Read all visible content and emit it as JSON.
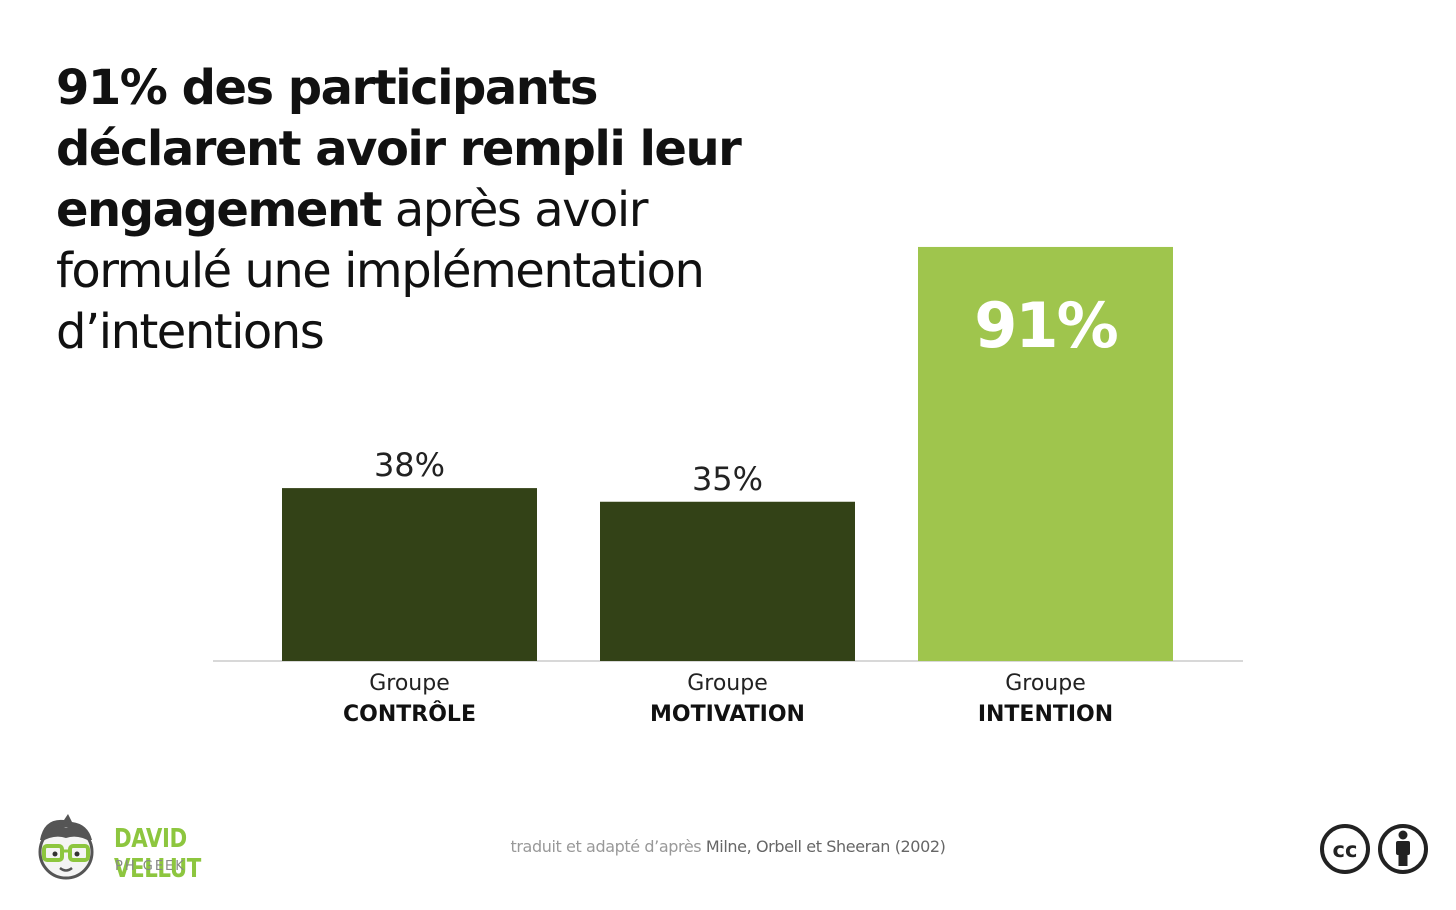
{
  "headline": {
    "bold_part": "91% des participants déclarent avoir rempli leur engagement",
    "regular_part": " après avoir formulé une implémentation d’intentions"
  },
  "chart_data": {
    "type": "bar",
    "categories": [
      "Groupe CONTRÔLE",
      "Groupe MOTIVATION",
      "Groupe INTENTION"
    ],
    "category_lines": [
      [
        "Groupe",
        "CONTRÔLE"
      ],
      [
        "Groupe",
        "MOTIVATION"
      ],
      [
        "Groupe",
        "INTENTION"
      ]
    ],
    "values": [
      38,
      35,
      91
    ],
    "value_labels": [
      "38%",
      "35%",
      "91%"
    ],
    "colors": [
      "#334217",
      "#334217",
      "#9fc54d"
    ],
    "highlight_index": 2,
    "ylim": [
      0,
      100
    ],
    "grid": false
  },
  "brand": {
    "name": "DAVID VELLUT",
    "subtitle": "PH GEEK",
    "logo_icon": "geek-face-icon",
    "accent_color": "#8dc63f"
  },
  "source": {
    "prefix": "traduit et adapté d’après ",
    "authors": "Milne, Orbell et Sheeran (2002)"
  },
  "license": {
    "icons": [
      "cc-icon",
      "attribution-icon"
    ],
    "cc_text": "cc"
  }
}
